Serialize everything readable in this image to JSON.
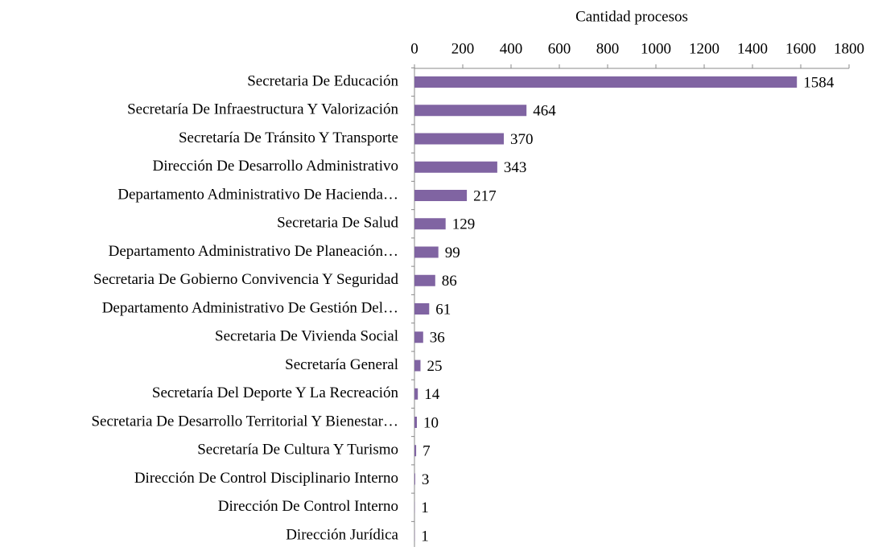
{
  "chart_data": {
    "type": "barh",
    "xlabel": "Cantidad procesos",
    "categories": [
      "Secretaria De Educación",
      "Secretaría De Infraestructura Y Valorización",
      "Secretaría De Tránsito Y Transporte",
      "Dirección De Desarrollo Administrativo",
      "Departamento Administrativo De Hacienda…",
      "Secretaria De Salud",
      "Departamento Administrativo De Planeación…",
      "Secretaria De Gobierno Convivencia Y Seguridad",
      "Departamento Administrativo De Gestión Del…",
      "Secretaria De Vivienda Social",
      "Secretaría General",
      "Secretaría Del Deporte Y La Recreación",
      "Secretaria De Desarrollo Territorial Y Bienestar…",
      "Secretaría De Cultura Y Turismo",
      "Dirección De Control Disciplinario Interno",
      "Dirección De Control Interno",
      "Dirección Jurídica"
    ],
    "values": [
      1584,
      464,
      370,
      343,
      217,
      129,
      99,
      86,
      61,
      36,
      25,
      14,
      10,
      7,
      3,
      1,
      1
    ],
    "color": "#8064a2",
    "xlim": [
      0,
      1800
    ],
    "xticks": [
      0,
      200,
      400,
      600,
      800,
      1000,
      1200,
      1400,
      1600,
      1800
    ]
  }
}
